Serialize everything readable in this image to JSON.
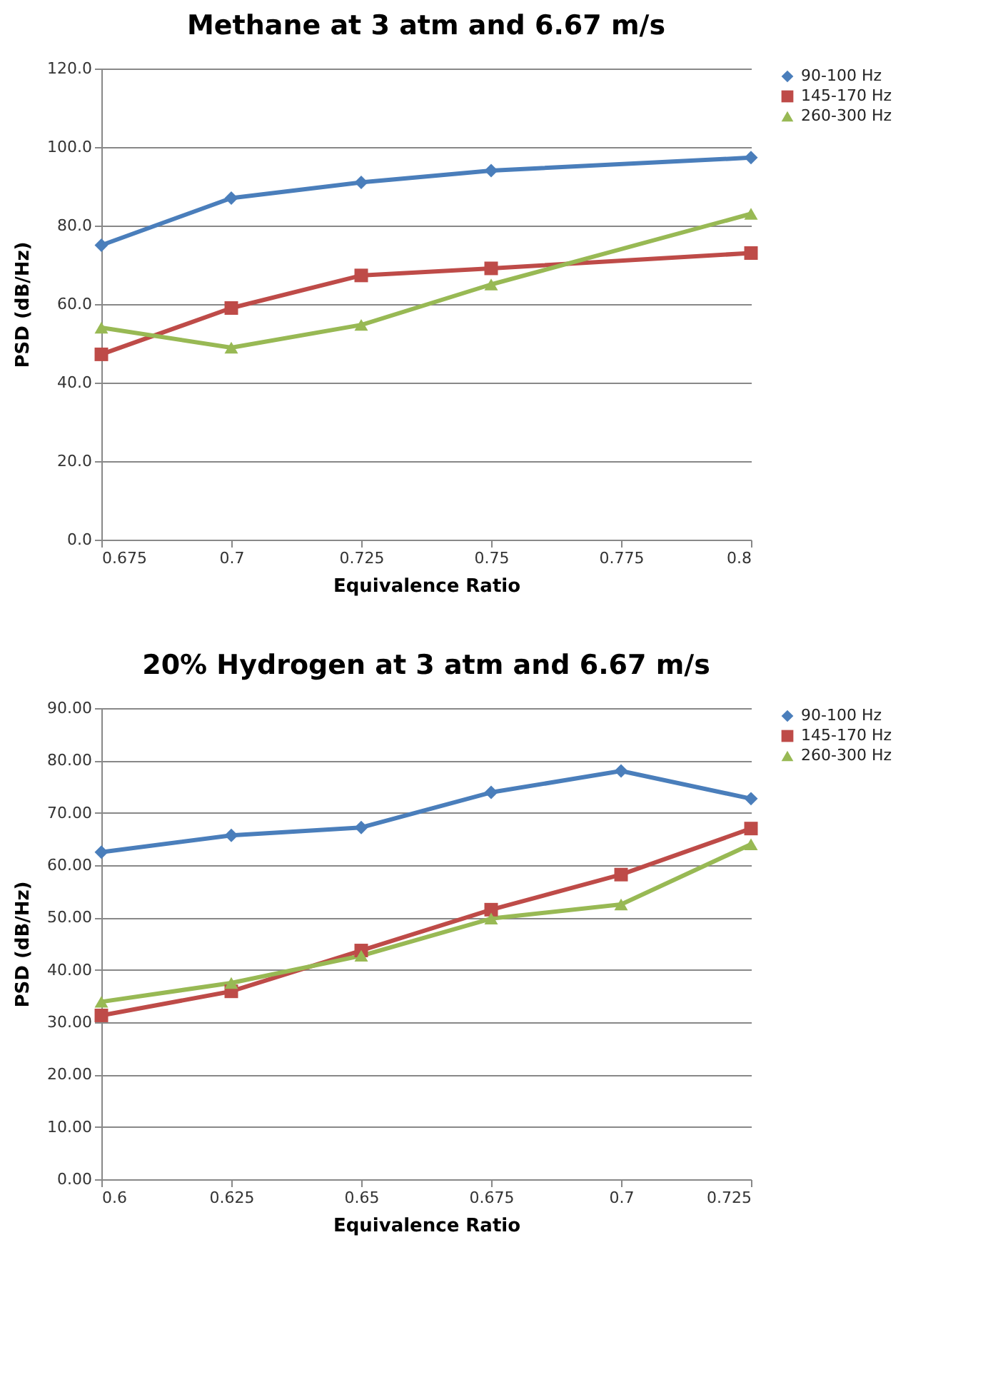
{
  "chart_data": [
    {
      "type": "line",
      "title": "Methane at 3 atm and 6.67 m/s",
      "xlabel": "Equivalence Ratio",
      "ylabel": "PSD (dB/Hz)",
      "x": [
        0.675,
        0.7,
        0.725,
        0.75,
        0.8
      ],
      "series": [
        {
          "name": "90-100 Hz",
          "color": "#4a7ebb",
          "marker": "diamond",
          "values": [
            75,
            87,
            91,
            94,
            97.3
          ]
        },
        {
          "name": "145-170 Hz",
          "color": "#be4b48",
          "marker": "square",
          "values": [
            47.2,
            59,
            67.3,
            69.1,
            73
          ]
        },
        {
          "name": "260-300 Hz",
          "color": "#98b954",
          "marker": "triangle",
          "values": [
            54,
            48.9,
            54.7,
            65,
            83
          ]
        }
      ],
      "xlim": [
        0.675,
        0.8
      ],
      "xticks": [
        0.675,
        0.7,
        0.725,
        0.75,
        0.775,
        0.8
      ],
      "ylim": [
        0,
        120
      ],
      "yticks": [
        {
          "value": 0,
          "label": "0.0"
        },
        {
          "value": 20,
          "label": "20.0"
        },
        {
          "value": 40,
          "label": "40.0"
        },
        {
          "value": 60,
          "label": "60.0"
        },
        {
          "value": 80,
          "label": "80.0"
        },
        {
          "value": 100,
          "label": "100.0"
        },
        {
          "value": 120,
          "label": "120.0"
        }
      ],
      "grid": "y",
      "legend": "right",
      "line_style": "solid"
    },
    {
      "type": "line",
      "title": "20% Hydrogen at 3 atm and 6.67 m/s",
      "xlabel": "Equivalence Ratio",
      "ylabel": "PSD (dB/Hz)",
      "x": [
        0.6,
        0.625,
        0.65,
        0.675,
        0.7,
        0.725
      ],
      "series": [
        {
          "name": "90-100 Hz",
          "color": "#4a7ebb",
          "marker": "diamond",
          "values": [
            62.5,
            65.7,
            67.2,
            73.9,
            78,
            72.7
          ]
        },
        {
          "name": "145-170 Hz",
          "color": "#be4b48",
          "marker": "square",
          "values": [
            31.3,
            35.9,
            43.7,
            51.5,
            58.2,
            67
          ]
        },
        {
          "name": "260-300 Hz",
          "color": "#98b954",
          "marker": "triangle",
          "values": [
            33.9,
            37.5,
            42.7,
            49.8,
            52.5,
            64
          ]
        }
      ],
      "xlim": [
        0.6,
        0.725
      ],
      "xticks": [
        0.6,
        0.625,
        0.65,
        0.675,
        0.7,
        0.725
      ],
      "ylim": [
        0,
        90
      ],
      "yticks": [
        {
          "value": 0,
          "label": "0.00"
        },
        {
          "value": 10,
          "label": "10.00"
        },
        {
          "value": 20,
          "label": "20.00"
        },
        {
          "value": 30,
          "label": "30.00"
        },
        {
          "value": 40,
          "label": "40.00"
        },
        {
          "value": 50,
          "label": "50.00"
        },
        {
          "value": 60,
          "label": "60.00"
        },
        {
          "value": 70,
          "label": "70.00"
        },
        {
          "value": 80,
          "label": "80.00"
        },
        {
          "value": 90,
          "label": "90.00"
        }
      ],
      "grid": "y",
      "legend": "right",
      "line_style": "solid"
    }
  ]
}
